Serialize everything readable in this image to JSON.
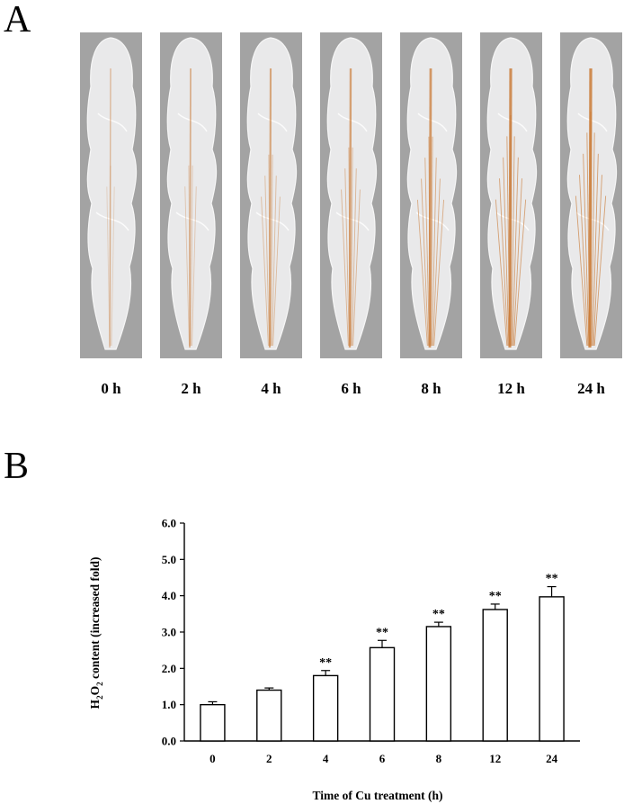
{
  "panel_a": {
    "letter": "A",
    "time_labels": [
      "0 h",
      "2 h",
      "4 h",
      "6 h",
      "8 h",
      "12 h",
      "24 h"
    ],
    "stain_intensity": [
      0.15,
      0.3,
      0.45,
      0.55,
      0.7,
      0.85,
      0.9
    ],
    "stain_color": "#c8742c"
  },
  "panel_b": {
    "letter": "B"
  },
  "chart_data": {
    "type": "bar",
    "categories": [
      "0",
      "2",
      "4",
      "6",
      "8",
      "12",
      "24"
    ],
    "values": [
      1.0,
      1.4,
      1.8,
      2.57,
      3.15,
      3.62,
      3.97
    ],
    "errors": [
      0.08,
      0.06,
      0.14,
      0.2,
      0.12,
      0.15,
      0.28
    ],
    "significance": [
      "",
      "",
      "**",
      "**",
      "**",
      "**",
      "**"
    ],
    "ylim": [
      0,
      6
    ],
    "yticks": [
      "0.0",
      "1.0",
      "2.0",
      "3.0",
      "4.0",
      "5.0",
      "6.0"
    ],
    "xlabel": "Time of Cu treatment (h)",
    "ylabel": "H2O2 content (increased fold)",
    "ylabel_parts": {
      "h": "H",
      "sub1": "2",
      "o": "O",
      "sub2": "2",
      "rest": " content (increased fold)"
    },
    "bar_fill": "#ffffff",
    "bar_stroke": "#000000",
    "grid": false
  }
}
